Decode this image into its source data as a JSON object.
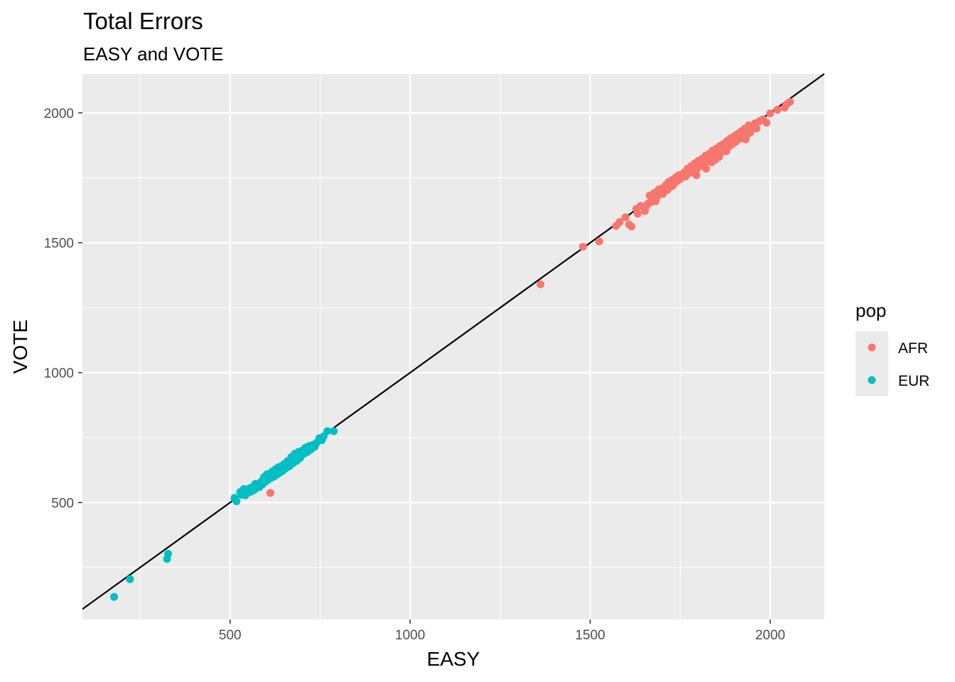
{
  "chart_data": {
    "type": "scatter",
    "title": "Total Errors",
    "subtitle": "EASY and VOTE",
    "xlabel": "EASY",
    "ylabel": "VOTE",
    "xlim": [
      90,
      2150
    ],
    "ylim": [
      50,
      2150
    ],
    "x_ticks": [
      500,
      1000,
      1500,
      2000
    ],
    "y_ticks": [
      500,
      1000,
      1500,
      2000
    ],
    "grid": true,
    "background": "#ebebeb",
    "reference_line": {
      "intercept": 0,
      "slope": 1,
      "color": "#000000"
    },
    "legend": {
      "title": "pop",
      "position": "right",
      "entries": [
        {
          "label": "AFR",
          "color": "#F8766D"
        },
        {
          "label": "EUR",
          "color": "#00BFC4"
        }
      ]
    },
    "series": [
      {
        "name": "AFR",
        "color": "#F8766D",
        "points": [
          [
            612,
            537
          ],
          [
            1362,
            1340
          ],
          [
            1480,
            1485
          ],
          [
            1525,
            1505
          ],
          [
            1572,
            1565
          ],
          [
            1582,
            1580
          ],
          [
            1598,
            1598
          ],
          [
            1608,
            1570
          ],
          [
            1615,
            1562
          ],
          [
            1628,
            1630
          ],
          [
            1632,
            1612
          ],
          [
            1640,
            1642
          ],
          [
            1652,
            1622
          ],
          [
            1655,
            1640
          ],
          [
            1660,
            1650
          ],
          [
            1665,
            1682
          ],
          [
            1672,
            1668
          ],
          [
            1678,
            1692
          ],
          [
            1682,
            1660
          ],
          [
            1686,
            1678
          ],
          [
            1690,
            1705
          ],
          [
            1694,
            1690
          ],
          [
            1700,
            1710
          ],
          [
            1705,
            1698
          ],
          [
            1710,
            1722
          ],
          [
            1715,
            1704
          ],
          [
            1718,
            1735
          ],
          [
            1722,
            1715
          ],
          [
            1728,
            1742
          ],
          [
            1732,
            1725
          ],
          [
            1738,
            1752
          ],
          [
            1742,
            1738
          ],
          [
            1746,
            1760
          ],
          [
            1750,
            1745
          ],
          [
            1755,
            1758
          ],
          [
            1760,
            1770
          ],
          [
            1765,
            1755
          ],
          [
            1770,
            1785
          ],
          [
            1775,
            1768
          ],
          [
            1780,
            1795
          ],
          [
            1785,
            1775
          ],
          [
            1790,
            1805
          ],
          [
            1795,
            1782
          ],
          [
            1800,
            1815
          ],
          [
            1805,
            1795
          ],
          [
            1810,
            1822
          ],
          [
            1815,
            1805
          ],
          [
            1820,
            1835
          ],
          [
            1825,
            1812
          ],
          [
            1830,
            1842
          ],
          [
            1835,
            1822
          ],
          [
            1840,
            1855
          ],
          [
            1845,
            1832
          ],
          [
            1850,
            1862
          ],
          [
            1855,
            1842
          ],
          [
            1860,
            1872
          ],
          [
            1865,
            1850
          ],
          [
            1870,
            1880
          ],
          [
            1875,
            1862
          ],
          [
            1880,
            1892
          ],
          [
            1885,
            1870
          ],
          [
            1890,
            1902
          ],
          [
            1895,
            1880
          ],
          [
            1900,
            1910
          ],
          [
            1905,
            1890
          ],
          [
            1910,
            1920
          ],
          [
            1915,
            1900
          ],
          [
            1920,
            1930
          ],
          [
            1925,
            1910
          ],
          [
            1930,
            1940
          ],
          [
            1935,
            1915
          ],
          [
            1940,
            1952
          ],
          [
            1945,
            1925
          ],
          [
            1950,
            1945
          ],
          [
            1958,
            1960
          ],
          [
            1962,
            1940
          ],
          [
            1970,
            1968
          ],
          [
            1980,
            1975
          ],
          [
            1990,
            1962
          ],
          [
            2000,
            1998
          ],
          [
            2020,
            2012
          ],
          [
            2040,
            2020
          ],
          [
            2045,
            2032
          ],
          [
            2055,
            2042
          ],
          [
            1795,
            1760
          ],
          [
            1822,
            1785
          ],
          [
            1838,
            1810
          ],
          [
            1858,
            1830
          ],
          [
            1668,
            1655
          ],
          [
            1702,
            1688
          ],
          [
            1728,
            1718
          ],
          [
            1812,
            1800
          ],
          [
            1848,
            1820
          ],
          [
            1878,
            1852
          ],
          [
            1902,
            1888
          ],
          [
            1932,
            1898
          ]
        ]
      },
      {
        "name": "EUR",
        "color": "#00BFC4",
        "points": [
          [
            178,
            137
          ],
          [
            222,
            205
          ],
          [
            325,
            283
          ],
          [
            328,
            303
          ],
          [
            512,
            518
          ],
          [
            518,
            505
          ],
          [
            528,
            540
          ],
          [
            532,
            530
          ],
          [
            538,
            552
          ],
          [
            542,
            528
          ],
          [
            546,
            548
          ],
          [
            550,
            538
          ],
          [
            554,
            555
          ],
          [
            558,
            542
          ],
          [
            562,
            560
          ],
          [
            566,
            548
          ],
          [
            570,
            572
          ],
          [
            574,
            556
          ],
          [
            578,
            568
          ],
          [
            582,
            560
          ],
          [
            586,
            580
          ],
          [
            590,
            570
          ],
          [
            594,
            598
          ],
          [
            598,
            580
          ],
          [
            602,
            608
          ],
          [
            606,
            588
          ],
          [
            610,
            612
          ],
          [
            614,
            595
          ],
          [
            618,
            620
          ],
          [
            622,
            600
          ],
          [
            626,
            628
          ],
          [
            630,
            608
          ],
          [
            634,
            636
          ],
          [
            638,
            615
          ],
          [
            642,
            640
          ],
          [
            646,
            622
          ],
          [
            650,
            648
          ],
          [
            655,
            632
          ],
          [
            660,
            660
          ],
          [
            665,
            640
          ],
          [
            670,
            675
          ],
          [
            675,
            652
          ],
          [
            680,
            688
          ],
          [
            685,
            660
          ],
          [
            690,
            695
          ],
          [
            695,
            672
          ],
          [
            700,
            700
          ],
          [
            705,
            688
          ],
          [
            710,
            712
          ],
          [
            715,
            695
          ],
          [
            720,
            718
          ],
          [
            725,
            705
          ],
          [
            730,
            722
          ],
          [
            735,
            715
          ],
          [
            740,
            730
          ],
          [
            748,
            748
          ],
          [
            755,
            740
          ],
          [
            760,
            755
          ],
          [
            770,
            775
          ],
          [
            788,
            775
          ],
          [
            598,
            592
          ],
          [
            608,
            600
          ],
          [
            628,
            618
          ],
          [
            648,
            638
          ],
          [
            668,
            655
          ],
          [
            688,
            672
          ],
          [
            708,
            695
          ],
          [
            728,
            710
          ],
          [
            583,
            575
          ],
          [
            603,
            595
          ],
          [
            623,
            612
          ],
          [
            643,
            628
          ]
        ]
      }
    ]
  }
}
